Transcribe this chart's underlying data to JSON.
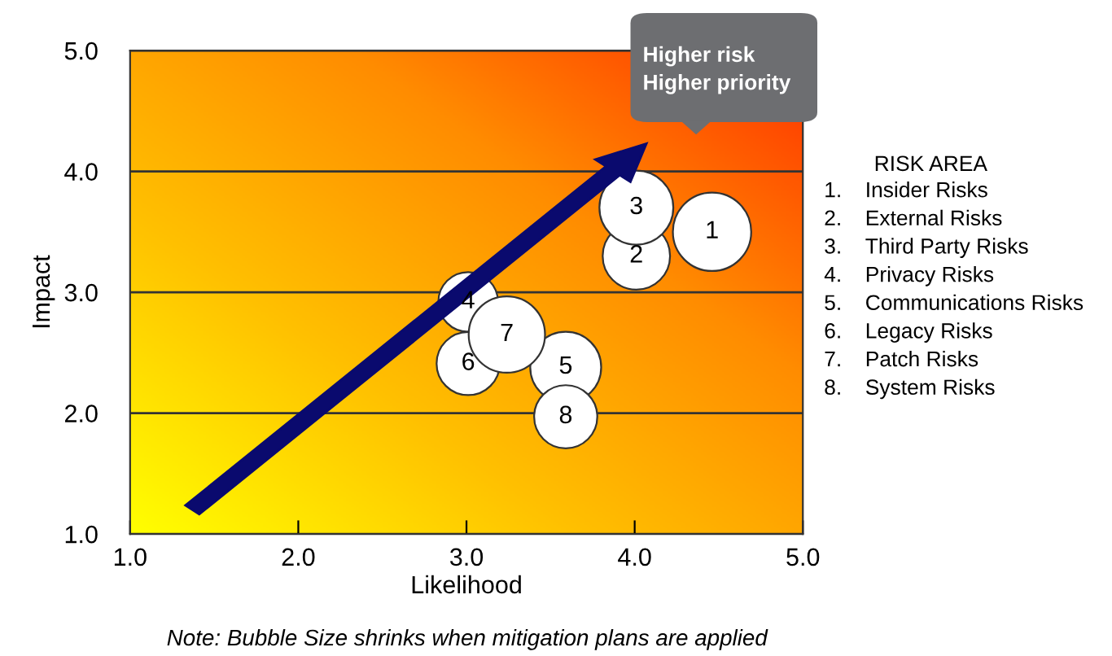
{
  "chart_data": {
    "type": "bubble",
    "xlabel": "Likelihood",
    "ylabel": "Impact",
    "xlim": [
      1.0,
      5.0
    ],
    "xticks": [
      {
        "value": 1,
        "label": "1.0"
      },
      {
        "value": 2,
        "label": "2.0"
      },
      {
        "value": 3,
        "label": "3.0"
      },
      {
        "value": 4,
        "label": "4.0"
      },
      {
        "value": 5,
        "label": "5.0"
      }
    ],
    "ylim": [
      1.0,
      5.0
    ],
    "yticks": [
      {
        "value": 1,
        "label": "1.0"
      },
      {
        "value": 2,
        "label": "2.0"
      },
      {
        "value": 3,
        "label": "3.0"
      },
      {
        "value": 4,
        "label": "4.0"
      },
      {
        "value": 5,
        "label": "5.0"
      }
    ],
    "grid": "y",
    "series": [
      {
        "color": "#ffffff",
        "x": [
          4.46,
          4.01,
          4.01,
          3.01,
          3.59,
          3.01,
          3.24,
          3.59
        ],
        "values": [
          3.5,
          3.3,
          3.7,
          2.92,
          2.38,
          2.41,
          2.65,
          1.97
        ],
        "sizes": [
          1,
          0.74,
          0.89,
          0.58,
          0.82,
          0.65,
          0.95,
          0.65
        ]
      }
    ],
    "legend_title": "RISK AREA",
    "annotations": [
      "1. Insider Risks",
      "2. External Risks",
      "3. Third Party Risks",
      "4. Privacy Risks",
      "5. Communications Risks",
      "6. Legacy Risks",
      "7. Patch Risks",
      "8. System Risks",
      "Higher risk\nHigher priority",
      "Note: Bubble Size shrinks when mitigation plans are applied",
      {
        "text": "1",
        "x": 4.46,
        "y": 3.5
      },
      {
        "text": "2",
        "x": 4.01,
        "y": 3.3
      },
      {
        "text": "3",
        "x": 4.01,
        "y": 3.7
      },
      {
        "text": "4",
        "x": 3.01,
        "y": 2.92
      },
      {
        "text": "5",
        "x": 3.59,
        "y": 2.38
      },
      {
        "text": "6",
        "x": 3.01,
        "y": 2.41
      },
      {
        "text": "7",
        "x": 3.24,
        "y": 2.65
      },
      {
        "text": "8",
        "x": 3.59,
        "y": 1.97
      }
    ]
  }
}
